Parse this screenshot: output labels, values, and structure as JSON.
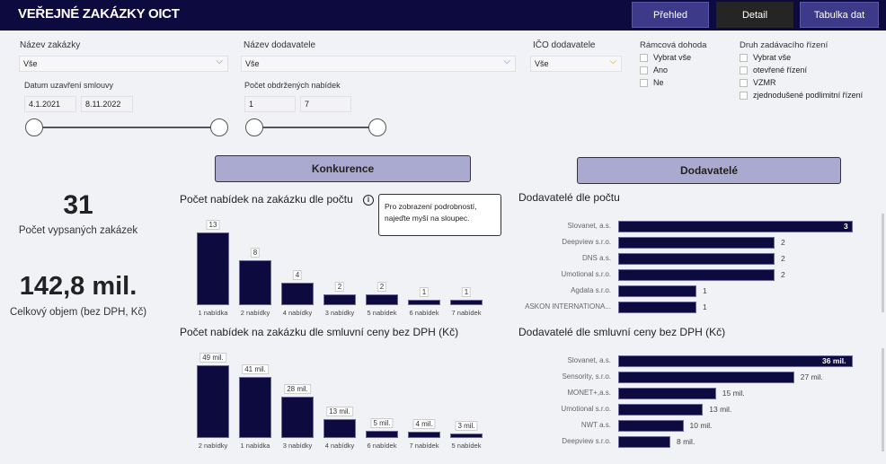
{
  "header": {
    "title": "VEŘEJNÉ ZAKÁZKY OICT",
    "nav": [
      "Přehled",
      "Detail",
      "Tabulka dat"
    ]
  },
  "filters": {
    "nazev_zakazky": {
      "label": "Název zakázky",
      "value": "Vše"
    },
    "nazev_dodavatele": {
      "label": "Název dodavatele",
      "value": "Vše"
    },
    "ico": {
      "label": "IČO dodavatele",
      "value": "Vše"
    },
    "datum": {
      "label": "Datum uzavření smlouvy",
      "from": "4.1.2021",
      "to": "8.11.2022"
    },
    "pocet": {
      "label": "Počet obdržených nabídek",
      "from": "1",
      "to": "7"
    },
    "ramcova": {
      "label": "Rámcová dohoda",
      "options": [
        "Vybrat vše",
        "Ano",
        "Ne"
      ]
    },
    "druh": {
      "label": "Druh zadávacího řízení",
      "options": [
        "Vybrat vše",
        "otevřené řízení",
        "VZMR",
        "zjednodušené podlimitní řízení"
      ]
    }
  },
  "sections": {
    "konkurence": "Konkurence",
    "dodavatele": "Dodavatelé"
  },
  "kpis": {
    "count": "31",
    "count_label": "Počet vypsaných zakázek",
    "volume": "142,8 mil.",
    "volume_label": "Celkový objem (bez DPH, Kč)"
  },
  "tooltip": "Pro zobrazení podrobností, najeďte myší na sloupec.",
  "chart_data": [
    {
      "type": "bar",
      "title": "Počet nabídek na zakázku dle počtu",
      "categories": [
        "1 nabídka",
        "2 nabídky",
        "4 nabídky",
        "3 nabídky",
        "5 nabídek",
        "6 nabídek",
        "7 nabídek"
      ],
      "values": [
        13,
        8,
        4,
        2,
        2,
        1,
        1
      ],
      "labels": [
        "13",
        "8",
        "4",
        "2",
        "2",
        "1",
        "1"
      ],
      "max": 13
    },
    {
      "type": "bar",
      "title": "Počet nabídek na zakázku dle smluvní ceny bez DPH (Kč)",
      "categories": [
        "2 nabídky",
        "1 nabídka",
        "3 nabídky",
        "4 nabídky",
        "6 nabídek",
        "7 nabídek",
        "5 nabídek"
      ],
      "values": [
        49,
        41,
        28,
        13,
        5,
        4,
        3
      ],
      "labels": [
        "49 mil.",
        "41 mil.",
        "28 mil.",
        "13 mil.",
        "5 mil.",
        "4 mil.",
        "3 mil."
      ],
      "max": 49
    },
    {
      "type": "bar",
      "orientation": "horizontal",
      "title": "Dodavatelé dle počtu",
      "categories": [
        "Slovanet, a.s.",
        "Deepview s.r.o.",
        "DNS a.s.",
        "Umotional s.r.o.",
        "Agdata s.r.o.",
        "ASKON INTERNATIONA..."
      ],
      "values": [
        3,
        2,
        2,
        2,
        1,
        1
      ],
      "labels": [
        "3",
        "2",
        "2",
        "2",
        "1",
        "1"
      ],
      "max": 3
    },
    {
      "type": "bar",
      "orientation": "horizontal",
      "title": "Dodavatelé dle smluvní ceny bez DPH (Kč)",
      "categories": [
        "Slovanet, a.s.",
        "Sensority, s.r.o.",
        "MONET+,a.s.",
        "Umotional s.r.o.",
        "NWT a.s.",
        "Deepview s.r.o."
      ],
      "values": [
        36,
        27,
        15,
        13,
        10,
        8
      ],
      "labels": [
        "36 mil.",
        "27 mil.",
        "15 mil.",
        "13 mil.",
        "10 mil.",
        "8 mil."
      ],
      "max": 36
    }
  ]
}
